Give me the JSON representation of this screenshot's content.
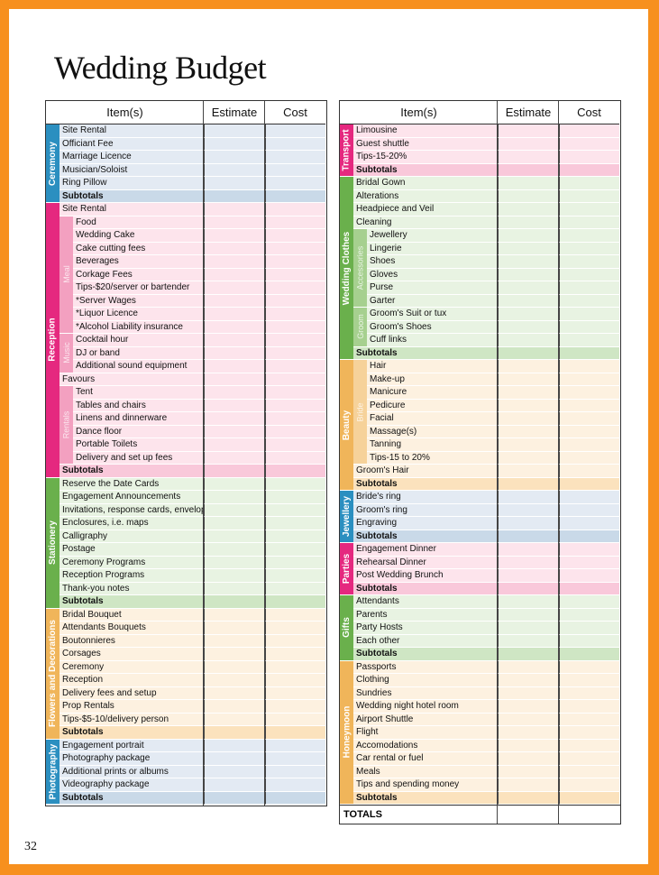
{
  "title": "Wedding Budget",
  "page_number": "32",
  "headers": {
    "items": "Item(s)",
    "estimate": "Estimate",
    "cost": "Cost"
  },
  "subtotal_label": "Subtotals",
  "totals_label": "TOTALS",
  "left_sections": [
    {
      "label": "Ceremony",
      "color": "#2b8fc0",
      "bg": "#e3eaf3",
      "subtotal_bg": "#c9d9e8",
      "group_color": "#7fb6d6",
      "rows": [
        "Site Rental",
        "Officiant Fee",
        "Marriage Licence",
        "Musician/Soloist",
        "Ring Pillow"
      ]
    },
    {
      "label": "Reception",
      "color": "#e5287f",
      "bg": "#fde4ec",
      "subtotal_bg": "#f9c8da",
      "group_color": "#f3a0c0",
      "rows": [
        "Site Rental",
        {
          "group": "Meal",
          "items": [
            "Food",
            "Wedding Cake",
            "Cake cutting fees",
            "Beverages",
            "Corkage Fees",
            "Tips-$20/server or bartender",
            "*Server Wages",
            "*Liquor Licence",
            "*Alcohol Liability insurance"
          ]
        },
        {
          "group": "Music",
          "items": [
            "Cocktail hour",
            "DJ or band",
            "Additional sound equipment"
          ]
        },
        "Favours",
        {
          "group": "Rentals",
          "items": [
            "Tent",
            "Tables and chairs",
            "Linens and dinnerware",
            "Dance floor",
            "Portable Toilets",
            "Delivery and set up fees"
          ]
        }
      ]
    },
    {
      "label": "Stationery",
      "color": "#6ab04c",
      "bg": "#e8f3e2",
      "subtotal_bg": "#cfe6c4",
      "group_color": "#a6d08f",
      "rows": [
        "Reserve the Date Cards",
        "Engagement Announcements",
        "Invitations, response cards, envelopes",
        "Enclosures, i.e. maps",
        "Calligraphy",
        "Postage",
        "Ceremony Programs",
        "Reception Programs",
        "Thank-you notes"
      ]
    },
    {
      "label": "Flowers and Decorations",
      "color": "#f0b55a",
      "bg": "#fdf1e0",
      "subtotal_bg": "#fbe2bd",
      "group_color": "#f6d29a",
      "rows": [
        "Bridal Bouquet",
        "Attendants Bouquets",
        "Boutonnieres",
        "Corsages",
        "Ceremony",
        "Reception",
        "Delivery fees and setup",
        "Prop Rentals",
        "Tips-$5-10/delivery person"
      ]
    },
    {
      "label": "Photography",
      "color": "#2b8fc0",
      "bg": "#e3eaf3",
      "subtotal_bg": "#c9d9e8",
      "group_color": "#7fb6d6",
      "rows": [
        "Engagement portrait",
        "Photography package",
        "Additional prints or albums",
        "Videography package"
      ]
    }
  ],
  "right_sections": [
    {
      "label": "Transport",
      "color": "#e5287f",
      "bg": "#fde4ec",
      "subtotal_bg": "#f9c8da",
      "group_color": "#f3a0c0",
      "rows": [
        "Limousine",
        "Guest shuttle",
        "Tips-15-20%"
      ]
    },
    {
      "label": "Wedding Clothes",
      "color": "#6ab04c",
      "bg": "#e8f3e2",
      "subtotal_bg": "#cfe6c4",
      "group_color": "#a6d08f",
      "rows": [
        "Bridal Gown",
        "Alterations",
        "Headpiece and Veil",
        "Cleaning",
        {
          "group": "Accessories",
          "items": [
            "Jewellery",
            "Lingerie",
            "Shoes",
            "Gloves",
            "Purse",
            "Garter"
          ]
        },
        {
          "group": "Groom",
          "items": [
            "Groom's Suit or tux",
            "Groom's Shoes",
            "Cuff links"
          ]
        }
      ]
    },
    {
      "label": "Beauty",
      "color": "#f0b55a",
      "bg": "#fdf1e0",
      "subtotal_bg": "#fbe2bd",
      "group_color": "#f6d29a",
      "rows": [
        {
          "group": "Bride",
          "items": [
            "Hair",
            "Make-up",
            "Manicure",
            "Pedicure",
            "Facial",
            "Massage(s)",
            "Tanning",
            "Tips-15 to 20%"
          ]
        },
        "Groom's Hair"
      ]
    },
    {
      "label": "Jewellery",
      "color": "#2b8fc0",
      "bg": "#e3eaf3",
      "subtotal_bg": "#c9d9e8",
      "group_color": "#7fb6d6",
      "rows": [
        "Bride's ring",
        "Groom's ring",
        "Engraving"
      ]
    },
    {
      "label": "Parties",
      "color": "#e5287f",
      "bg": "#fde4ec",
      "subtotal_bg": "#f9c8da",
      "group_color": "#f3a0c0",
      "rows": [
        "Engagement Dinner",
        "Rehearsal Dinner",
        "Post Wedding Brunch"
      ]
    },
    {
      "label": "Gifts",
      "color": "#6ab04c",
      "bg": "#e8f3e2",
      "subtotal_bg": "#cfe6c4",
      "group_color": "#a6d08f",
      "rows": [
        "Attendants",
        "Parents",
        "Party Hosts",
        "Each other"
      ]
    },
    {
      "label": "Honeymoon",
      "color": "#f0b55a",
      "bg": "#fdf1e0",
      "subtotal_bg": "#fbe2bd",
      "group_color": "#f6d29a",
      "rows": [
        "Passports",
        "Clothing",
        "Sundries",
        "Wedding night hotel room",
        "Airport Shuttle",
        "Flight",
        "Accomodations",
        "Car rental or fuel",
        "Meals",
        "Tips and spending money"
      ]
    }
  ]
}
